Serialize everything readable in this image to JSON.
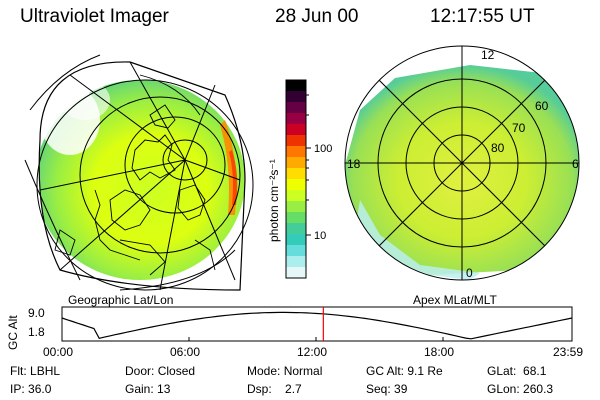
{
  "header": {
    "title": "Ultraviolet Imager",
    "date": "28 Jun 00",
    "time": "12:17:55 UT"
  },
  "left_panel": {
    "caption": "Geographic Lat/Lon"
  },
  "right_panel": {
    "caption": "Apex MLat/MLT",
    "lat_labels": [
      "60",
      "70",
      "80"
    ],
    "mlt_labels": {
      "top": "12",
      "bottom": "0",
      "left": "18",
      "right": "6"
    }
  },
  "colorbar": {
    "unit": "photon cm⁻²s⁻¹",
    "ticks": [
      "100",
      "10"
    ],
    "colors": [
      "#000000",
      "#330033",
      "#660044",
      "#990044",
      "#cc0022",
      "#ee3300",
      "#ff7700",
      "#ffaa00",
      "#ffdd00",
      "#eeff00",
      "#ccff22",
      "#99ee44",
      "#66dd66",
      "#44cc99",
      "#33ccbb",
      "#66dddd",
      "#aaeeee",
      "#e6f7f7"
    ]
  },
  "altitude_plot": {
    "ylabel": "GC Alt",
    "y_ticks": [
      "9.0",
      "1.8"
    ],
    "x_ticks": [
      "00:00",
      "06:00",
      "12:00",
      "18:00",
      "23:59"
    ],
    "marker_time": "12:17:55",
    "marker_color": "#ff0000"
  },
  "status": {
    "row1": [
      {
        "label": "Flt:",
        "value": "LBHL"
      },
      {
        "label": "Door:",
        "value": "Closed"
      },
      {
        "label": "Mode:",
        "value": "Normal"
      },
      {
        "label": "GC Alt:",
        "value": "9.1 Re"
      },
      {
        "label": "GLat:",
        "value": "68.1"
      }
    ],
    "row2": [
      {
        "label": "IP:",
        "value": "36.0"
      },
      {
        "label": "Gain:",
        "value": "13"
      },
      {
        "label": "Dsp:",
        "value": "2.7"
      },
      {
        "label": "Seq:",
        "value": "39"
      },
      {
        "label": "GLon:",
        "value": "260.3"
      }
    ]
  }
}
